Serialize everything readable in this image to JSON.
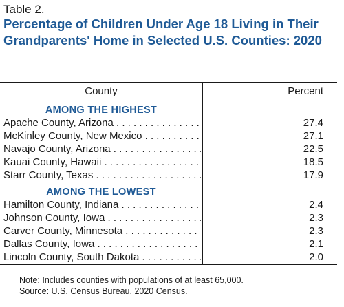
{
  "table_label": "Table 2.",
  "title": "Percentage of Children Under Age 18 Living in Their Grandparents' Home in Selected U.S. Counties: 2020",
  "columns": {
    "county": "County",
    "percent": "Percent"
  },
  "colors": {
    "title": "#1f5a96",
    "group_heading": "#1f5a96",
    "text": "#1a1a1a"
  },
  "groups": [
    {
      "heading": "AMONG THE HIGHEST",
      "rows": [
        {
          "county": "Apache County, Arizona",
          "percent": "27.4"
        },
        {
          "county": "McKinley County, New Mexico",
          "percent": "27.1"
        },
        {
          "county": "Navajo County, Arizona",
          "percent": "22.5"
        },
        {
          "county": "Kauai County, Hawaii",
          "percent": "18.5"
        },
        {
          "county": "Starr County, Texas",
          "percent": "17.9"
        }
      ]
    },
    {
      "heading": "AMONG THE LOWEST",
      "rows": [
        {
          "county": "Hamilton County, Indiana",
          "percent": "2.4"
        },
        {
          "county": "Johnson County, Iowa",
          "percent": "2.3"
        },
        {
          "county": "Carver County, Minnesota",
          "percent": "2.3"
        },
        {
          "county": "Dallas County, Iowa",
          "percent": "2.1"
        },
        {
          "county": "Lincoln County, South Dakota",
          "percent": "2.0"
        }
      ]
    }
  ],
  "note": "Note: Includes counties with populations of at least 65,000.",
  "source": "Source: U.S. Census Bureau, 2020 Census.",
  "chart_data": {
    "type": "table",
    "title": "Percentage of Children Under Age 18 Living in Their Grandparents' Home in Selected U.S. Counties: 2020",
    "columns": [
      "County",
      "Percent"
    ],
    "rows": [
      [
        "Apache County, Arizona",
        27.4
      ],
      [
        "McKinley County, New Mexico",
        27.1
      ],
      [
        "Navajo County, Arizona",
        22.5
      ],
      [
        "Kauai County, Hawaii",
        18.5
      ],
      [
        "Starr County, Texas",
        17.9
      ],
      [
        "Hamilton County, Indiana",
        2.4
      ],
      [
        "Johnson County, Iowa",
        2.3
      ],
      [
        "Carver County, Minnesota",
        2.3
      ],
      [
        "Dallas County, Iowa",
        2.1
      ],
      [
        "Lincoln County, South Dakota",
        2.0
      ]
    ]
  }
}
